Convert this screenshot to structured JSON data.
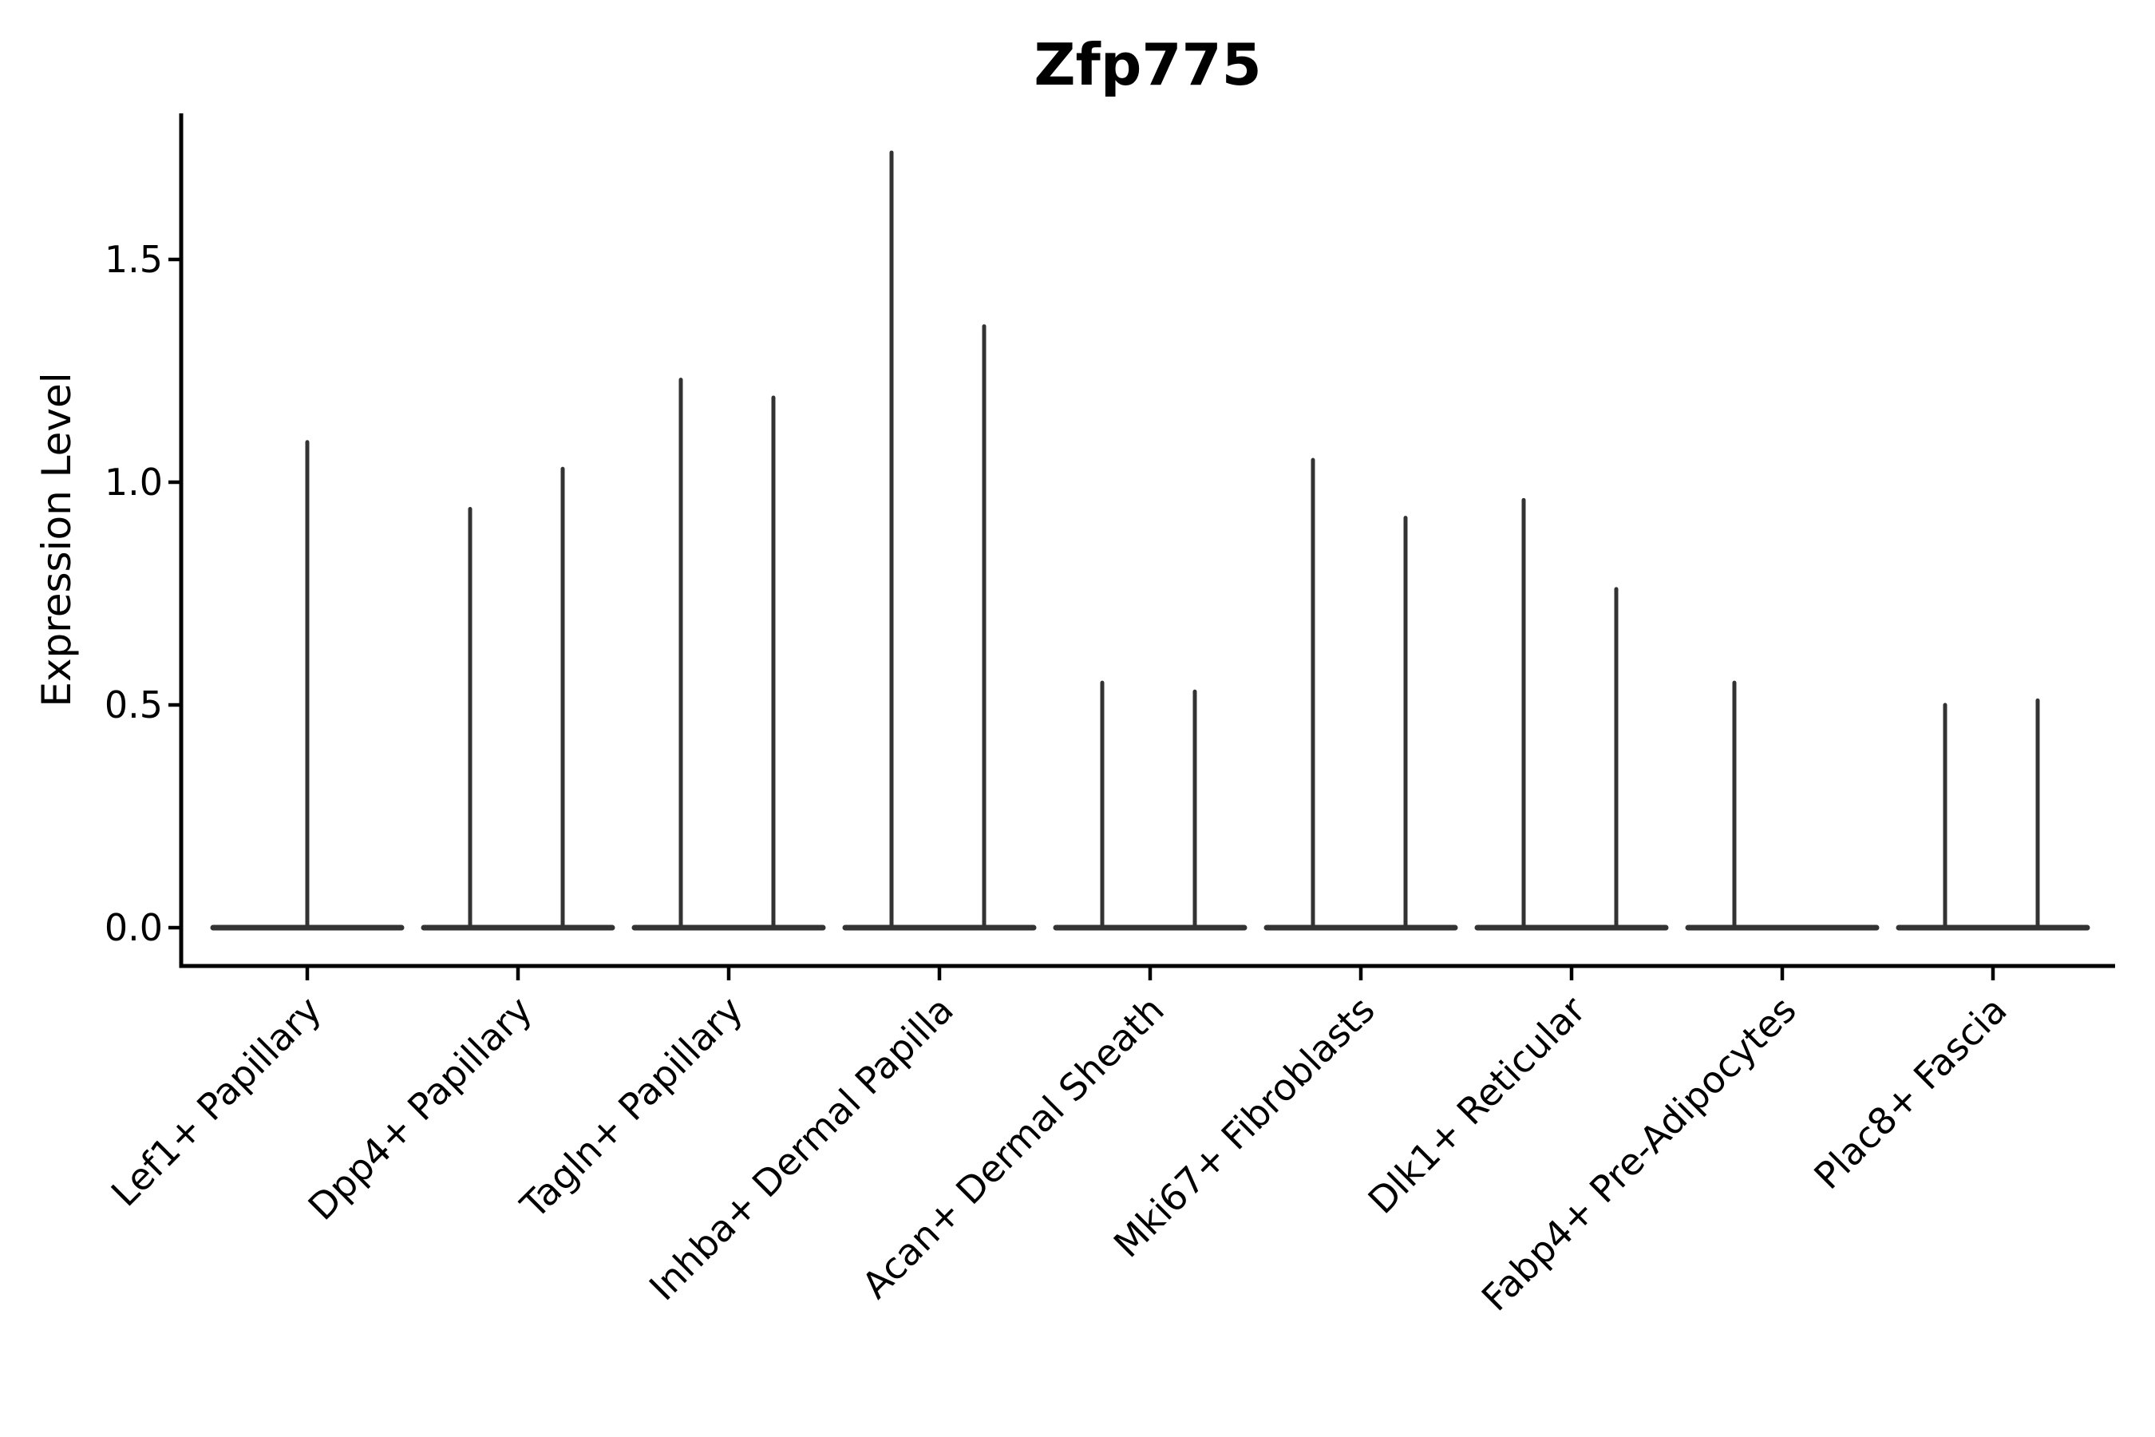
{
  "figure": {
    "background": "#ffffff"
  },
  "chart_data": {
    "type": "violin",
    "title": "Zfp775",
    "ylabel": "Expression Level",
    "xlabel": "",
    "grid": false,
    "legend_position": "none",
    "ylim": [
      -0.09,
      1.83
    ],
    "yticks": [
      0.0,
      0.5,
      1.0,
      1.5
    ],
    "ytick_labels": [
      "0.0",
      "0.5",
      "1.0",
      "1.5"
    ],
    "colors": {
      "violin": "#333333",
      "axis": "#000000",
      "text": "#000000"
    },
    "categories": [
      "Lef1+ Papillary",
      "Dpp4+ Papillary",
      "Tagln+ Papillary",
      "Inhba+ Dermal Papilla",
      "Acan+ Dermal Sheath",
      "Mki67+ Fibroblasts",
      "Dlk1+ Reticular",
      "Fabp4+ Pre-Adipocytes",
      "Plac8+ Fascia"
    ],
    "groups": [
      {
        "category": "Lef1+ Papillary",
        "violins": [
          {
            "slot": "center",
            "max": 1.09
          }
        ]
      },
      {
        "category": "Dpp4+ Papillary",
        "violins": [
          {
            "slot": "left",
            "max": 0.94
          },
          {
            "slot": "right",
            "max": 1.03
          }
        ]
      },
      {
        "category": "Tagln+ Papillary",
        "violins": [
          {
            "slot": "left",
            "max": 1.23
          },
          {
            "slot": "right",
            "max": 1.19
          }
        ]
      },
      {
        "category": "Inhba+ Dermal Papilla",
        "violins": [
          {
            "slot": "left",
            "max": 1.74
          },
          {
            "slot": "right",
            "max": 1.35
          }
        ]
      },
      {
        "category": "Acan+ Dermal Sheath",
        "violins": [
          {
            "slot": "left",
            "max": 0.55
          },
          {
            "slot": "right",
            "max": 0.53
          }
        ]
      },
      {
        "category": "Mki67+ Fibroblasts",
        "violins": [
          {
            "slot": "left",
            "max": 1.05
          },
          {
            "slot": "right",
            "max": 0.92
          }
        ]
      },
      {
        "category": "Dlk1+ Reticular",
        "violins": [
          {
            "slot": "left",
            "max": 0.96
          },
          {
            "slot": "right",
            "max": 0.76
          }
        ]
      },
      {
        "category": "Fabp4+ Pre-Adipocytes",
        "violins": [
          {
            "slot": "left",
            "max": 0.55
          },
          {
            "slot": "right",
            "max": 0.0
          }
        ]
      },
      {
        "category": "Plac8+ Fascia",
        "violins": [
          {
            "slot": "left",
            "max": 0.5
          },
          {
            "slot": "right",
            "max": 0.51
          }
        ]
      }
    ]
  }
}
